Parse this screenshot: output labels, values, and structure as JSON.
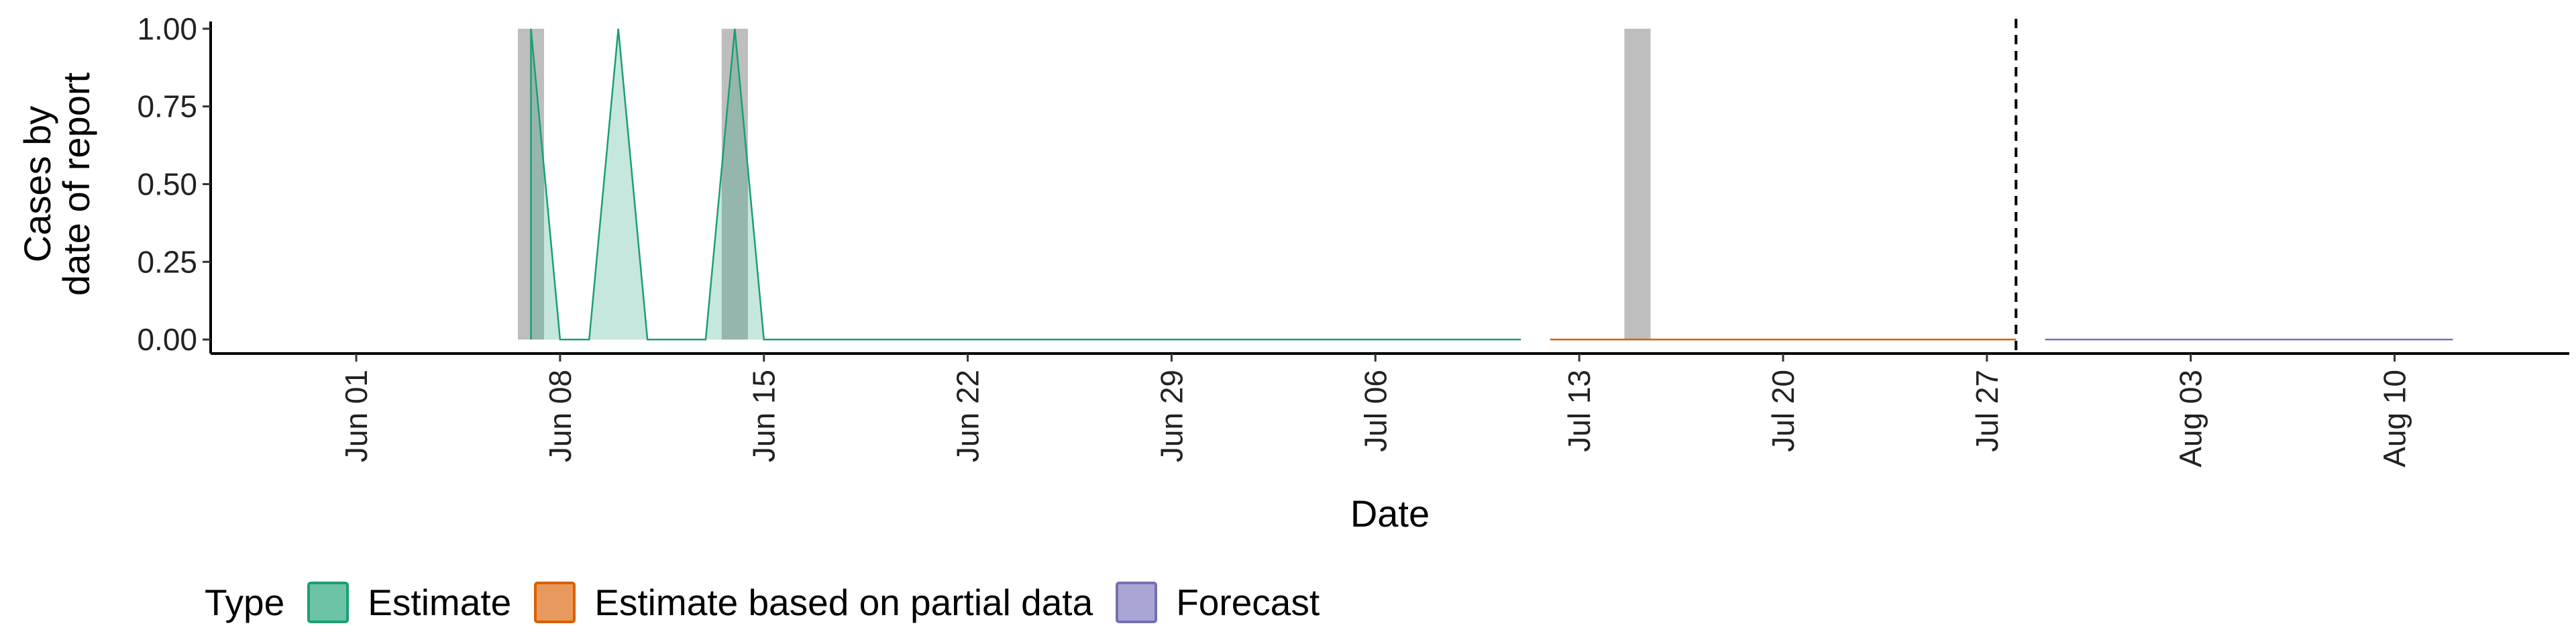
{
  "chart_data": {
    "type": "area",
    "xlabel": "Date",
    "ylabel": [
      "Cases by",
      "date of report"
    ],
    "ylim": [
      -0.045,
      1.045
    ],
    "xlim": [
      "2021-05-27",
      "2021-08-16"
    ],
    "y_ticks": [
      {
        "value": 0.0,
        "label": "0.00"
      },
      {
        "value": 0.25,
        "label": "0.25"
      },
      {
        "value": 0.5,
        "label": "0.50"
      },
      {
        "value": 0.75,
        "label": "0.75"
      },
      {
        "value": 1.0,
        "label": "1.00"
      }
    ],
    "x_ticks": [
      {
        "value": "2021-06-01",
        "label": "Jun 01"
      },
      {
        "value": "2021-06-08",
        "label": "Jun 08"
      },
      {
        "value": "2021-06-15",
        "label": "Jun 15"
      },
      {
        "value": "2021-06-22",
        "label": "Jun 22"
      },
      {
        "value": "2021-06-29",
        "label": "Jun 29"
      },
      {
        "value": "2021-07-06",
        "label": "Jul 06"
      },
      {
        "value": "2021-07-13",
        "label": "Jul 13"
      },
      {
        "value": "2021-07-20",
        "label": "Jul 20"
      },
      {
        "value": "2021-07-27",
        "label": "Jul 27"
      },
      {
        "value": "2021-08-03",
        "label": "Aug 03"
      },
      {
        "value": "2021-08-10",
        "label": "Aug 10"
      }
    ],
    "observed_bars": [
      {
        "x": "2021-06-07",
        "value": 1
      },
      {
        "x": "2021-06-14",
        "value": 1
      },
      {
        "x": "2021-07-15",
        "value": 1
      }
    ],
    "series": [
      {
        "name": "Estimate",
        "color": "#1b9e77",
        "points": [
          [
            "2021-06-07",
            0
          ],
          [
            "2021-06-07",
            1
          ],
          [
            "2021-06-08",
            0
          ],
          [
            "2021-06-09",
            0
          ],
          [
            "2021-06-10",
            1
          ],
          [
            "2021-06-11",
            0
          ],
          [
            "2021-06-13",
            0
          ],
          [
            "2021-06-14",
            1
          ],
          [
            "2021-06-15",
            0
          ],
          [
            "2021-07-11",
            0
          ]
        ]
      },
      {
        "name": "Estimate based on partial data",
        "color": "#d95f02",
        "points": [
          [
            "2021-07-12",
            0
          ],
          [
            "2021-07-28",
            0
          ]
        ]
      },
      {
        "name": "Forecast",
        "color": "#7570b3",
        "points": [
          [
            "2021-07-29",
            0
          ],
          [
            "2021-08-12",
            0
          ]
        ]
      }
    ],
    "forecast_start": "2021-07-28",
    "bar_color": "#bebebe",
    "grid": false,
    "legend_position": "bottom"
  },
  "legend": {
    "title": "Type",
    "items": [
      {
        "label": "Estimate",
        "fill": "#6cc3a6",
        "border": "#1b9e77"
      },
      {
        "label": "Estimate based on partial data",
        "fill": "#e8995e",
        "border": "#d95f02"
      },
      {
        "label": "Forecast",
        "fill": "#aaa6d4",
        "border": "#7570b3"
      }
    ]
  }
}
